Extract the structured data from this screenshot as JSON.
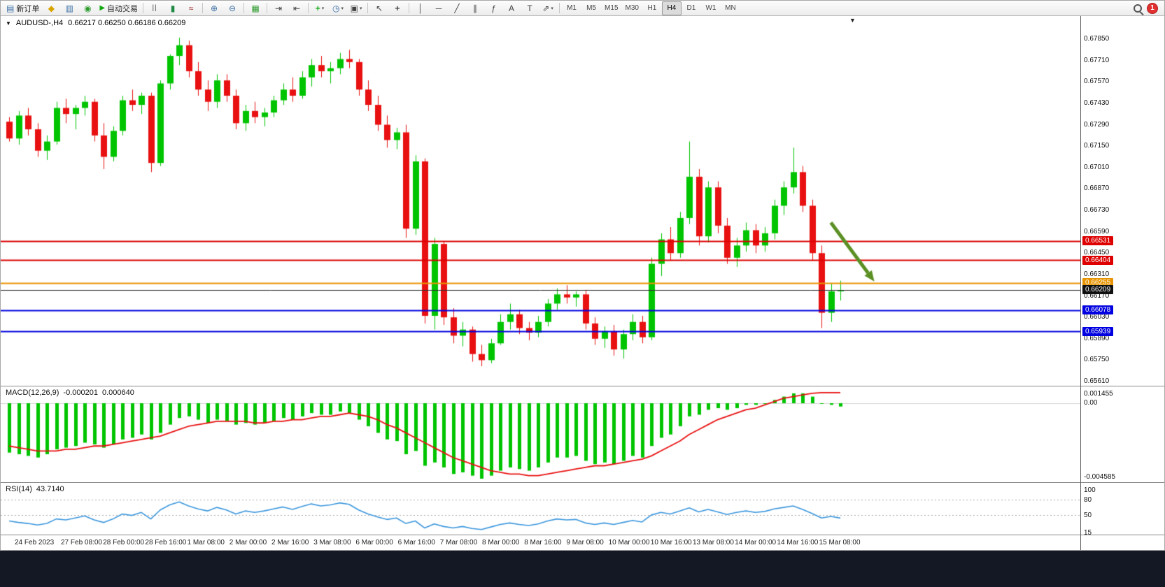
{
  "toolbar": {
    "new_order_label": "新订单",
    "auto_trading_label": "自动交易",
    "timeframes": [
      "M1",
      "M5",
      "M15",
      "M30",
      "H1",
      "H4",
      "D1",
      "W1",
      "MN"
    ],
    "active_timeframe": "H4",
    "notification_count": "1"
  },
  "icons": {
    "new_order": "▤",
    "market_watch": "◆",
    "charts": "▥",
    "terminal": "◉",
    "play": "▶",
    "bar_chart": "||",
    "candle_chart": "▮",
    "line_chart": "≈",
    "zoom_in": "⊕",
    "zoom_out": "⊖",
    "tile_windows": "▦",
    "auto_scroll": "⇥",
    "chart_shift": "⇤",
    "add_indicator": "+",
    "periods": "◷",
    "templates": "▣",
    "cursor": "↖",
    "crosshair": "+",
    "vertical_line": "│",
    "horizontal_line": "─",
    "trendline": "╱",
    "channel": "∥",
    "fibonacci": "ƒ",
    "text_tool": "A",
    "label_tool": "T",
    "arrows_tool": "⇗",
    "caret": "▾",
    "symbol_caret": "▼",
    "shift_marker": "▼"
  },
  "chart_data": [
    {
      "type": "candlestick",
      "symbol_label": "AUDUSD-,H4",
      "ohlc_label": "0.66217 0.66250 0.66186 0.66209",
      "colors": {
        "up": "#00C400",
        "down": "#E81010",
        "bid_line": "#303030",
        "bid_badge": "#101010"
      },
      "y_ticks": [
        "0.67850",
        "0.67710",
        "0.67570",
        "0.67430",
        "0.67290",
        "0.67150",
        "0.67010",
        "0.66870",
        "0.66730",
        "0.66590",
        "0.66450",
        "0.66310",
        "0.66170",
        "0.66030",
        "0.65890",
        "0.65750",
        "0.65610"
      ],
      "x_labels": [
        "24 Feb 2023",
        "27 Feb 08:00",
        "28 Feb 00:00",
        "28 Feb 16:00",
        "1 Mar 08:00",
        "2 Mar 00:00",
        "2 Mar 16:00",
        "3 Mar 08:00",
        "6 Mar 00:00",
        "6 Mar 16:00",
        "7 Mar 08:00",
        "8 Mar 00:00",
        "8 Mar 16:00",
        "9 Mar 08:00",
        "10 Mar 00:00",
        "10 Mar 16:00",
        "13 Mar 08:00",
        "14 Mar 00:00",
        "14 Mar 16:00",
        "15 Mar 08:00"
      ],
      "hlines": [
        {
          "price": 0.66531,
          "label": "0.66531",
          "color": "#DE0000",
          "width": 2
        },
        {
          "price": 0.66404,
          "label": "0.66404",
          "color": "#DE0000",
          "width": 2
        },
        {
          "price": 0.66255,
          "label": "0.66255",
          "color": "#E89400",
          "width": 2
        },
        {
          "price": 0.66078,
          "label": "0.66078",
          "color": "#0000E0",
          "width": 2
        },
        {
          "price": 0.65939,
          "label": "0.65939",
          "color": "#0000E0",
          "width": 2
        }
      ],
      "bid": {
        "price": 0.66209,
        "label": "0.66209"
      },
      "annotations": [
        {
          "type": "arrow",
          "from_candle": 87,
          "from_price": 0.6665,
          "to_candle": 91.6,
          "to_price": 0.66265,
          "color": "#5A8F23"
        }
      ],
      "candles": [
        [
          0.6731,
          0.6734,
          0.6718,
          0.672
        ],
        [
          0.672,
          0.6738,
          0.6716,
          0.6735
        ],
        [
          0.6735,
          0.674,
          0.6722,
          0.6726
        ],
        [
          0.6726,
          0.673,
          0.6708,
          0.6712
        ],
        [
          0.6712,
          0.6722,
          0.6706,
          0.6718
        ],
        [
          0.6718,
          0.6744,
          0.6716,
          0.674
        ],
        [
          0.674,
          0.6746,
          0.673,
          0.6736
        ],
        [
          0.6736,
          0.6742,
          0.6726,
          0.674
        ],
        [
          0.674,
          0.6748,
          0.6735,
          0.6744
        ],
        [
          0.6744,
          0.6746,
          0.6718,
          0.6722
        ],
        [
          0.6722,
          0.673,
          0.67,
          0.6708
        ],
        [
          0.6708,
          0.6728,
          0.6705,
          0.6725
        ],
        [
          0.6725,
          0.6748,
          0.6722,
          0.6745
        ],
        [
          0.6745,
          0.6752,
          0.6738,
          0.6742
        ],
        [
          0.6742,
          0.675,
          0.6736,
          0.6748
        ],
        [
          0.6748,
          0.675,
          0.6698,
          0.6704
        ],
        [
          0.6704,
          0.6758,
          0.6702,
          0.6756
        ],
        [
          0.6756,
          0.6775,
          0.6752,
          0.6774
        ],
        [
          0.6774,
          0.6786,
          0.6768,
          0.6781
        ],
        [
          0.6781,
          0.6784,
          0.676,
          0.6764
        ],
        [
          0.6764,
          0.677,
          0.6748,
          0.6752
        ],
        [
          0.6752,
          0.6758,
          0.6738,
          0.6744
        ],
        [
          0.6744,
          0.6762,
          0.674,
          0.6758
        ],
        [
          0.6758,
          0.6762,
          0.6744,
          0.6748
        ],
        [
          0.6748,
          0.6752,
          0.6726,
          0.673
        ],
        [
          0.673,
          0.6742,
          0.6725,
          0.6738
        ],
        [
          0.6738,
          0.6744,
          0.673,
          0.6734
        ],
        [
          0.6734,
          0.674,
          0.6728,
          0.6737
        ],
        [
          0.6737,
          0.6748,
          0.6734,
          0.6745
        ],
        [
          0.6745,
          0.6756,
          0.6742,
          0.6752
        ],
        [
          0.6752,
          0.676,
          0.6744,
          0.6748
        ],
        [
          0.6748,
          0.6764,
          0.6746,
          0.676
        ],
        [
          0.676,
          0.6772,
          0.6754,
          0.6768
        ],
        [
          0.6768,
          0.6774,
          0.676,
          0.6764
        ],
        [
          0.6764,
          0.677,
          0.6756,
          0.6766
        ],
        [
          0.6766,
          0.6776,
          0.6762,
          0.6772
        ],
        [
          0.6772,
          0.6778,
          0.6766,
          0.677
        ],
        [
          0.677,
          0.6772,
          0.6748,
          0.6752
        ],
        [
          0.6752,
          0.6758,
          0.6738,
          0.6742
        ],
        [
          0.6742,
          0.6748,
          0.6725,
          0.6729
        ],
        [
          0.6729,
          0.6735,
          0.6714,
          0.6719
        ],
        [
          0.6719,
          0.6727,
          0.6713,
          0.6724
        ],
        [
          0.6724,
          0.6729,
          0.6655,
          0.6661
        ],
        [
          0.6661,
          0.6709,
          0.6657,
          0.6705
        ],
        [
          0.6705,
          0.6707,
          0.6599,
          0.6604
        ],
        [
          0.6604,
          0.6655,
          0.6595,
          0.6651
        ],
        [
          0.6651,
          0.6653,
          0.6598,
          0.6603
        ],
        [
          0.6603,
          0.6609,
          0.6586,
          0.6591
        ],
        [
          0.6591,
          0.66,
          0.6584,
          0.6595
        ],
        [
          0.6595,
          0.6597,
          0.6574,
          0.6579
        ],
        [
          0.6579,
          0.6585,
          0.6571,
          0.6575
        ],
        [
          0.6575,
          0.6589,
          0.6573,
          0.6586
        ],
        [
          0.6586,
          0.6605,
          0.6585,
          0.66
        ],
        [
          0.66,
          0.6612,
          0.6595,
          0.6605
        ],
        [
          0.6605,
          0.6608,
          0.6592,
          0.6596
        ],
        [
          0.6596,
          0.66,
          0.6588,
          0.6593
        ],
        [
          0.6593,
          0.6604,
          0.659,
          0.66
        ],
        [
          0.66,
          0.6615,
          0.6597,
          0.6612
        ],
        [
          0.6612,
          0.6622,
          0.6608,
          0.6618
        ],
        [
          0.6618,
          0.6624,
          0.6612,
          0.6616
        ],
        [
          0.6616,
          0.662,
          0.661,
          0.6618
        ],
        [
          0.6618,
          0.6621,
          0.6595,
          0.6599
        ],
        [
          0.6599,
          0.6603,
          0.6585,
          0.6589
        ],
        [
          0.6589,
          0.6597,
          0.6583,
          0.6594
        ],
        [
          0.6594,
          0.6598,
          0.6578,
          0.6582
        ],
        [
          0.6582,
          0.6595,
          0.6576,
          0.6592
        ],
        [
          0.6592,
          0.6605,
          0.6588,
          0.66
        ],
        [
          0.66,
          0.6604,
          0.6586,
          0.659
        ],
        [
          0.659,
          0.6642,
          0.6588,
          0.6638
        ],
        [
          0.6638,
          0.6658,
          0.663,
          0.6654
        ],
        [
          0.6654,
          0.6662,
          0.664,
          0.6645
        ],
        [
          0.6645,
          0.6672,
          0.6642,
          0.6668
        ],
        [
          0.6668,
          0.6718,
          0.6664,
          0.6695
        ],
        [
          0.6695,
          0.67,
          0.665,
          0.6656
        ],
        [
          0.6656,
          0.6692,
          0.6652,
          0.6688
        ],
        [
          0.6688,
          0.6692,
          0.6658,
          0.6663
        ],
        [
          0.6663,
          0.6668,
          0.6638,
          0.6642
        ],
        [
          0.6642,
          0.6655,
          0.6636,
          0.665
        ],
        [
          0.665,
          0.6665,
          0.6646,
          0.666
        ],
        [
          0.666,
          0.6664,
          0.6645,
          0.665
        ],
        [
          0.665,
          0.6662,
          0.6646,
          0.6658
        ],
        [
          0.6658,
          0.668,
          0.6654,
          0.6676
        ],
        [
          0.6676,
          0.6692,
          0.667,
          0.6688
        ],
        [
          0.6688,
          0.6714,
          0.6684,
          0.6698
        ],
        [
          0.6698,
          0.6702,
          0.6672,
          0.6676
        ],
        [
          0.6676,
          0.668,
          0.664,
          0.6645
        ],
        [
          0.6645,
          0.665,
          0.6596,
          0.6606
        ],
        [
          0.6606,
          0.6625,
          0.66,
          0.662
        ],
        [
          0.662,
          0.6627,
          0.6614,
          0.66209
        ]
      ]
    },
    {
      "type": "macd",
      "label": "MACD(12,26,9)",
      "value_main": "-0.000201",
      "value_signal": "0.000640",
      "y_ticks": [
        "0.001455",
        "0.00",
        "-0.004585"
      ],
      "colors": {
        "histogram": "#00C400",
        "signal": "#E81010"
      },
      "histogram": [
        -0.003,
        -0.0031,
        -0.0032,
        -0.0033,
        -0.0031,
        -0.0028,
        -0.0027,
        -0.0026,
        -0.0024,
        -0.0025,
        -0.0027,
        -0.0025,
        -0.0022,
        -0.0021,
        -0.0019,
        -0.0022,
        -0.0018,
        -0.0013,
        -0.0009,
        -0.0008,
        -0.001,
        -0.0012,
        -0.001,
        -0.0011,
        -0.0013,
        -0.0012,
        -0.0013,
        -0.0012,
        -0.0011,
        -0.0009,
        -0.001,
        -0.0008,
        -0.0006,
        -0.0007,
        -0.0007,
        -0.0005,
        -0.0006,
        -0.001,
        -0.0014,
        -0.0018,
        -0.0022,
        -0.0023,
        -0.0031,
        -0.0029,
        -0.0038,
        -0.0036,
        -0.0039,
        -0.0043,
        -0.0042,
        -0.0044,
        -0.004585,
        -0.0044,
        -0.0041,
        -0.0039,
        -0.004,
        -0.0041,
        -0.0039,
        -0.0036,
        -0.0033,
        -0.0033,
        -0.0032,
        -0.0035,
        -0.0037,
        -0.0036,
        -0.0037,
        -0.0035,
        -0.0032,
        -0.0033,
        -0.0026,
        -0.0021,
        -0.0019,
        -0.0014,
        -0.0008,
        -0.0007,
        -0.0004,
        -0.0003,
        -0.0004,
        -0.0003,
        -0.0001,
        -0.0001,
        0.0,
        0.0002,
        0.0004,
        0.0006,
        0.0006,
        0.0004,
        0.0,
        -0.0001,
        -0.000201
      ],
      "signal": [
        -0.0026,
        -0.0027,
        -0.0028,
        -0.0029,
        -0.0029,
        -0.0029,
        -0.0028,
        -0.0028,
        -0.0027,
        -0.0026,
        -0.0026,
        -0.0025,
        -0.0024,
        -0.0023,
        -0.0022,
        -0.0021,
        -0.002,
        -0.0018,
        -0.0016,
        -0.0014,
        -0.0013,
        -0.0012,
        -0.0011,
        -0.0011,
        -0.0011,
        -0.0011,
        -0.0012,
        -0.0012,
        -0.0011,
        -0.0011,
        -0.001,
        -0.001,
        -0.0009,
        -0.0008,
        -0.0008,
        -0.0007,
        -0.0006,
        -0.0007,
        -0.0008,
        -0.001,
        -0.0013,
        -0.0015,
        -0.0018,
        -0.0021,
        -0.0024,
        -0.0027,
        -0.003,
        -0.0033,
        -0.0035,
        -0.0037,
        -0.0039,
        -0.0041,
        -0.0042,
        -0.0043,
        -0.0043,
        -0.0044,
        -0.0044,
        -0.0043,
        -0.0042,
        -0.0041,
        -0.004,
        -0.0039,
        -0.0038,
        -0.0038,
        -0.0037,
        -0.0036,
        -0.0035,
        -0.0034,
        -0.0032,
        -0.0029,
        -0.0026,
        -0.0023,
        -0.0019,
        -0.0016,
        -0.0013,
        -0.001,
        -0.0008,
        -0.0006,
        -0.0004,
        -0.0003,
        -0.0001,
        0.0001,
        0.0003,
        0.0004,
        0.0005,
        0.0006,
        0.00064,
        0.00064,
        0.00064
      ]
    },
    {
      "type": "rsi",
      "label": "RSI(14)",
      "value": "43.7140",
      "y_ticks": [
        "100",
        "80",
        "50",
        "15"
      ],
      "levels": [
        80,
        50
      ],
      "color": "#3A96DD",
      "values": [
        38,
        35,
        33,
        30,
        33,
        42,
        40,
        44,
        48,
        40,
        35,
        42,
        52,
        49,
        55,
        42,
        60,
        70,
        76,
        68,
        62,
        58,
        65,
        60,
        52,
        58,
        55,
        58,
        62,
        66,
        61,
        67,
        72,
        68,
        70,
        74,
        71,
        60,
        52,
        46,
        41,
        44,
        33,
        38,
        24,
        32,
        27,
        24,
        27,
        23,
        21,
        26,
        31,
        34,
        31,
        29,
        32,
        38,
        42,
        40,
        41,
        34,
        31,
        34,
        31,
        35,
        39,
        36,
        50,
        55,
        52,
        58,
        64,
        56,
        61,
        56,
        51,
        55,
        58,
        55,
        57,
        62,
        65,
        68,
        61,
        53,
        44,
        47,
        43.714
      ]
    }
  ]
}
